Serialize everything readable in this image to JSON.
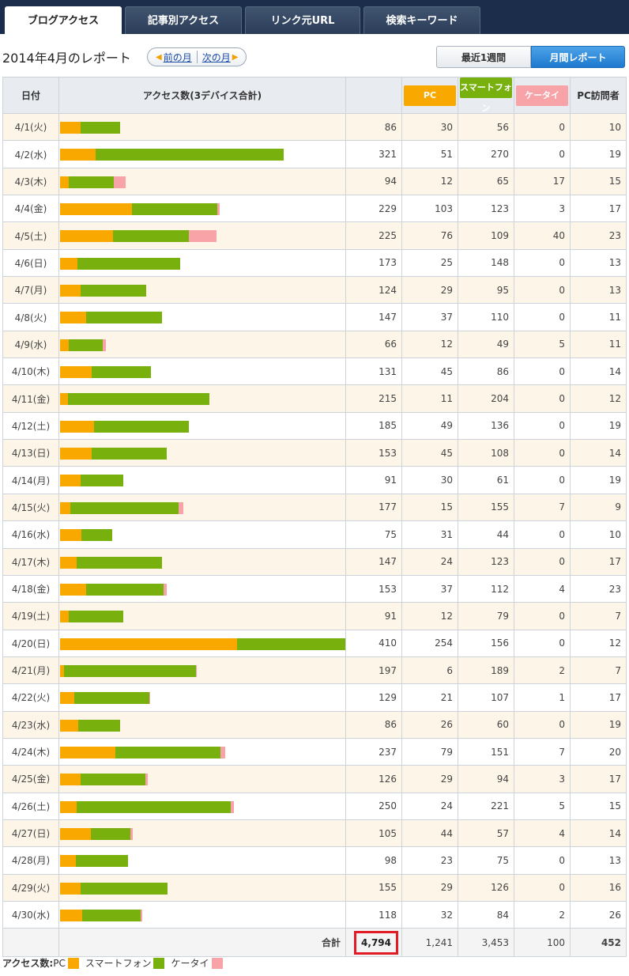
{
  "tabs": [
    "ブログアクセス",
    "記事別アクセス",
    "リンク元URL",
    "検索キーワード"
  ],
  "report_title": "2014年4月のレポート",
  "nav": {
    "prev": "前の月",
    "next": "次の月",
    "arrow_left": "◀",
    "arrow_right": "▶"
  },
  "view_buttons": {
    "week": "最近1週間",
    "month": "月間レポート"
  },
  "columns": {
    "date": "日付",
    "access": "アクセス数(3デバイス合計)",
    "pc": "PC",
    "smartphone": "スマートフォン",
    "keitai": "ケータイ",
    "pc_visitors": "PC訪問者"
  },
  "colors": {
    "pc": "#f9a800",
    "smartphone": "#78b10e",
    "keitai": "#f7a3a8",
    "total_highlight": "#e01c26"
  },
  "rows": [
    {
      "date": "4/1(火)",
      "total": "86",
      "pc": "30",
      "sp": "56",
      "kt": "0",
      "visitors": "10"
    },
    {
      "date": "4/2(水)",
      "total": "321",
      "pc": "51",
      "sp": "270",
      "kt": "0",
      "visitors": "19"
    },
    {
      "date": "4/3(木)",
      "total": "94",
      "pc": "12",
      "sp": "65",
      "kt": "17",
      "visitors": "15"
    },
    {
      "date": "4/4(金)",
      "total": "229",
      "pc": "103",
      "sp": "123",
      "kt": "3",
      "visitors": "17"
    },
    {
      "date": "4/5(土)",
      "total": "225",
      "pc": "76",
      "sp": "109",
      "kt": "40",
      "visitors": "23"
    },
    {
      "date": "4/6(日)",
      "total": "173",
      "pc": "25",
      "sp": "148",
      "kt": "0",
      "visitors": "13"
    },
    {
      "date": "4/7(月)",
      "total": "124",
      "pc": "29",
      "sp": "95",
      "kt": "0",
      "visitors": "13"
    },
    {
      "date": "4/8(火)",
      "total": "147",
      "pc": "37",
      "sp": "110",
      "kt": "0",
      "visitors": "11"
    },
    {
      "date": "4/9(水)",
      "total": "66",
      "pc": "12",
      "sp": "49",
      "kt": "5",
      "visitors": "11"
    },
    {
      "date": "4/10(木)",
      "total": "131",
      "pc": "45",
      "sp": "86",
      "kt": "0",
      "visitors": "14"
    },
    {
      "date": "4/11(金)",
      "total": "215",
      "pc": "11",
      "sp": "204",
      "kt": "0",
      "visitors": "12"
    },
    {
      "date": "4/12(土)",
      "total": "185",
      "pc": "49",
      "sp": "136",
      "kt": "0",
      "visitors": "19"
    },
    {
      "date": "4/13(日)",
      "total": "153",
      "pc": "45",
      "sp": "108",
      "kt": "0",
      "visitors": "14"
    },
    {
      "date": "4/14(月)",
      "total": "91",
      "pc": "30",
      "sp": "61",
      "kt": "0",
      "visitors": "19"
    },
    {
      "date": "4/15(火)",
      "total": "177",
      "pc": "15",
      "sp": "155",
      "kt": "7",
      "visitors": "9"
    },
    {
      "date": "4/16(水)",
      "total": "75",
      "pc": "31",
      "sp": "44",
      "kt": "0",
      "visitors": "10"
    },
    {
      "date": "4/17(木)",
      "total": "147",
      "pc": "24",
      "sp": "123",
      "kt": "0",
      "visitors": "17"
    },
    {
      "date": "4/18(金)",
      "total": "153",
      "pc": "37",
      "sp": "112",
      "kt": "4",
      "visitors": "23"
    },
    {
      "date": "4/19(土)",
      "total": "91",
      "pc": "12",
      "sp": "79",
      "kt": "0",
      "visitors": "7"
    },
    {
      "date": "4/20(日)",
      "total": "410",
      "pc": "254",
      "sp": "156",
      "kt": "0",
      "visitors": "12"
    },
    {
      "date": "4/21(月)",
      "total": "197",
      "pc": "6",
      "sp": "189",
      "kt": "2",
      "visitors": "7"
    },
    {
      "date": "4/22(火)",
      "total": "129",
      "pc": "21",
      "sp": "107",
      "kt": "1",
      "visitors": "17"
    },
    {
      "date": "4/23(水)",
      "total": "86",
      "pc": "26",
      "sp": "60",
      "kt": "0",
      "visitors": "19"
    },
    {
      "date": "4/24(木)",
      "total": "237",
      "pc": "79",
      "sp": "151",
      "kt": "7",
      "visitors": "20"
    },
    {
      "date": "4/25(金)",
      "total": "126",
      "pc": "29",
      "sp": "94",
      "kt": "3",
      "visitors": "17"
    },
    {
      "date": "4/26(土)",
      "total": "250",
      "pc": "24",
      "sp": "221",
      "kt": "5",
      "visitors": "15"
    },
    {
      "date": "4/27(日)",
      "total": "105",
      "pc": "44",
      "sp": "57",
      "kt": "4",
      "visitors": "14"
    },
    {
      "date": "4/28(月)",
      "total": "98",
      "pc": "23",
      "sp": "75",
      "kt": "0",
      "visitors": "13"
    },
    {
      "date": "4/29(火)",
      "total": "155",
      "pc": "29",
      "sp": "126",
      "kt": "0",
      "visitors": "16"
    },
    {
      "date": "4/30(水)",
      "total": "118",
      "pc": "32",
      "sp": "84",
      "kt": "2",
      "visitors": "26"
    }
  ],
  "totals": {
    "label": "合計",
    "total": "4,794",
    "pc": "1,241",
    "sp": "3,453",
    "kt": "100",
    "visitors": "452"
  },
  "legend": {
    "label": "アクセス数:",
    "pc": "PC",
    "smartphone": "スマートフォン",
    "keitai": "ケータイ"
  }
}
